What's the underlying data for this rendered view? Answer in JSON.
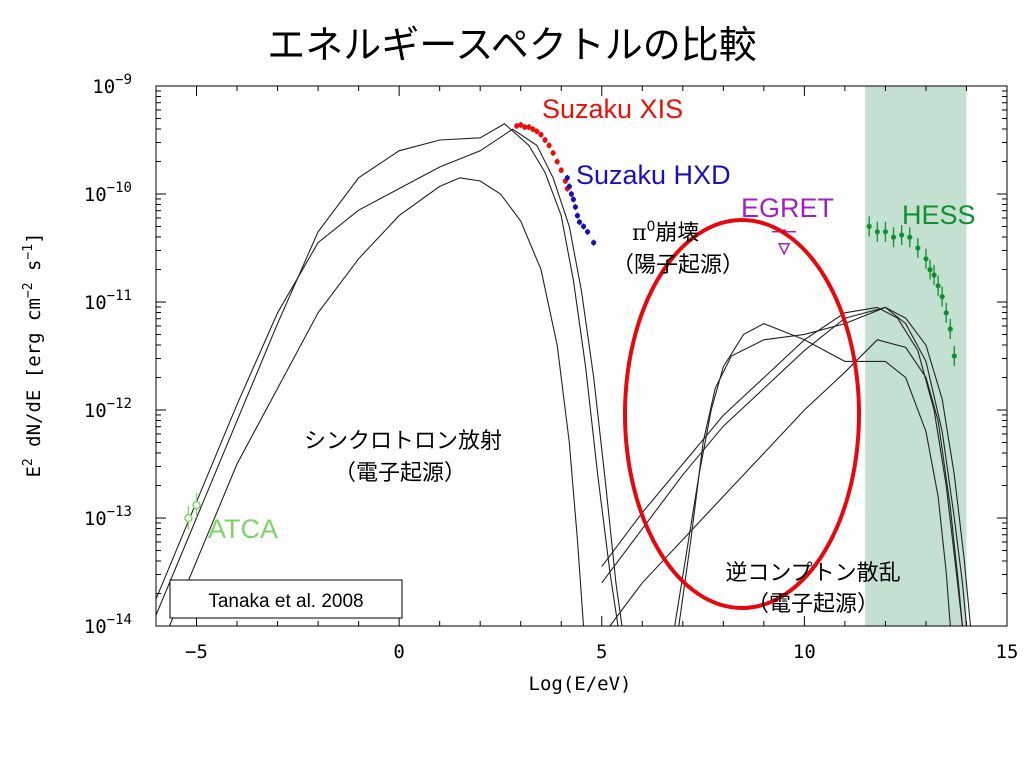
{
  "chart_data": {
    "type": "line",
    "title": "エネルギースペクトルの比較",
    "xlabel": "Log(E/eV)",
    "ylabel_parts": {
      "pre": "E",
      "sup1": "2",
      "mid": " dN/dE [erg cm",
      "sup2": "−2",
      "mid2": " s",
      "sup3": "−1",
      "post": "]"
    },
    "xlim": [
      -6,
      15
    ],
    "ylim_exp": [
      -14,
      -9
    ],
    "y_scale": "log",
    "x_ticks": [
      {
        "v": -5,
        "label": "−5"
      },
      {
        "v": 0,
        "label": "0"
      },
      {
        "v": 5,
        "label": "5"
      },
      {
        "v": 10,
        "label": "10"
      },
      {
        "v": 15,
        "label": "15"
      }
    ],
    "y_ticks": [
      {
        "exp": -9,
        "base": "10",
        "sup": "−9"
      },
      {
        "exp": -10,
        "base": "10",
        "sup": "−10"
      },
      {
        "exp": -11,
        "base": "10",
        "sup": "−11"
      },
      {
        "exp": -12,
        "base": "10",
        "sup": "−12"
      },
      {
        "exp": -13,
        "base": "10",
        "sup": "−13"
      },
      {
        "exp": -14,
        "base": "10",
        "sup": "−14"
      }
    ],
    "shaded_band": {
      "x_from": 11.5,
      "x_to": 14.0,
      "color": "#c3e0d1"
    },
    "curves": [
      [
        [
          -6.0,
          -13.9
        ],
        [
          -5,
          -13.0
        ],
        [
          -4,
          -12.1
        ],
        [
          -3,
          -11.2
        ],
        [
          -2,
          -10.35
        ],
        [
          -1,
          -9.85
        ],
        [
          0,
          -9.6
        ],
        [
          1,
          -9.5
        ],
        [
          2,
          -9.48
        ],
        [
          2.6,
          -9.35
        ],
        [
          3.2,
          -9.55
        ],
        [
          3.6,
          -9.8
        ],
        [
          4.0,
          -10.2
        ],
        [
          4.3,
          -10.8
        ],
        [
          4.6,
          -11.6
        ],
        [
          4.9,
          -12.6
        ],
        [
          5.2,
          -13.5
        ],
        [
          5.4,
          -14.0
        ]
      ],
      [
        [
          -6.0,
          -13.75
        ],
        [
          -5,
          -12.85
        ],
        [
          -4,
          -11.95
        ],
        [
          -3,
          -11.1
        ],
        [
          -2,
          -10.45
        ],
        [
          -1,
          -10.15
        ],
        [
          0,
          -9.95
        ],
        [
          1,
          -9.75
        ],
        [
          2,
          -9.6
        ],
        [
          2.8,
          -9.4
        ],
        [
          3.4,
          -9.55
        ],
        [
          3.8,
          -9.85
        ],
        [
          4.2,
          -10.3
        ],
        [
          4.5,
          -10.9
        ],
        [
          4.8,
          -11.7
        ],
        [
          5.1,
          -12.7
        ],
        [
          5.35,
          -13.6
        ],
        [
          5.5,
          -14.0
        ]
      ],
      [
        [
          -6.0,
          -14.3
        ],
        [
          -4,
          -12.5
        ],
        [
          -2,
          -11.1
        ],
        [
          -1,
          -10.6
        ],
        [
          0,
          -10.2
        ],
        [
          1,
          -9.93
        ],
        [
          1.5,
          -9.85
        ],
        [
          2,
          -9.88
        ],
        [
          2.5,
          -10.0
        ],
        [
          3,
          -10.25
        ],
        [
          3.5,
          -10.7
        ],
        [
          3.9,
          -11.4
        ],
        [
          4.2,
          -12.3
        ],
        [
          4.4,
          -13.2
        ],
        [
          4.55,
          -14.0
        ]
      ],
      [
        [
          6.9,
          -14.0
        ],
        [
          7.2,
          -13.2
        ],
        [
          7.5,
          -12.3
        ],
        [
          7.8,
          -11.8
        ],
        [
          8.2,
          -11.5
        ],
        [
          9,
          -11.35
        ],
        [
          10,
          -11.3
        ],
        [
          11,
          -11.2
        ],
        [
          12,
          -11.05
        ],
        [
          12.5,
          -11.15
        ],
        [
          13,
          -11.4
        ],
        [
          13.4,
          -11.9
        ],
        [
          13.7,
          -12.6
        ],
        [
          13.95,
          -13.4
        ],
        [
          14.1,
          -14.0
        ]
      ],
      [
        [
          5.0,
          -13.6
        ],
        [
          6,
          -13.1
        ],
        [
          7,
          -12.6
        ],
        [
          8,
          -12.15
        ],
        [
          9,
          -11.8
        ],
        [
          10,
          -11.45
        ],
        [
          11,
          -11.15
        ],
        [
          12,
          -11.05
        ],
        [
          12.5,
          -11.2
        ],
        [
          13,
          -11.55
        ],
        [
          13.4,
          -12.2
        ],
        [
          13.7,
          -13.0
        ],
        [
          13.9,
          -13.6
        ],
        [
          14.0,
          -14.0
        ]
      ],
      [
        [
          5.0,
          -13.45
        ],
        [
          6,
          -12.95
        ],
        [
          7,
          -12.5
        ],
        [
          8,
          -12.05
        ],
        [
          9,
          -11.7
        ],
        [
          10,
          -11.35
        ],
        [
          11,
          -11.1
        ],
        [
          11.8,
          -11.05
        ],
        [
          12.3,
          -11.15
        ],
        [
          12.8,
          -11.45
        ],
        [
          13.2,
          -12.0
        ],
        [
          13.5,
          -12.7
        ],
        [
          13.75,
          -13.5
        ],
        [
          13.9,
          -14.0
        ]
      ],
      [
        [
          5.2,
          -14.0
        ],
        [
          6,
          -13.6
        ],
        [
          7,
          -13.2
        ],
        [
          8,
          -12.8
        ],
        [
          9,
          -12.4
        ],
        [
          10,
          -12.0
        ],
        [
          11,
          -11.65
        ],
        [
          11.8,
          -11.35
        ],
        [
          12.5,
          -11.42
        ],
        [
          13,
          -11.7
        ],
        [
          13.3,
          -12.1
        ],
        [
          13.6,
          -12.9
        ],
        [
          13.8,
          -13.6
        ],
        [
          13.9,
          -14.0
        ]
      ],
      [
        [
          6.8,
          -14.0
        ],
        [
          7.1,
          -13.3
        ],
        [
          7.4,
          -12.6
        ],
        [
          7.7,
          -12.0
        ],
        [
          8,
          -11.6
        ],
        [
          8.5,
          -11.3
        ],
        [
          9,
          -11.2
        ],
        [
          10,
          -11.35
        ],
        [
          11,
          -11.55
        ],
        [
          12,
          -11.55
        ],
        [
          12.5,
          -11.7
        ],
        [
          13,
          -12.2
        ],
        [
          13.3,
          -12.8
        ],
        [
          13.5,
          -13.5
        ],
        [
          13.6,
          -14.0
        ]
      ]
    ],
    "series": [
      {
        "name": "Suzaku XIS",
        "color": "#e8100a",
        "points": [
          [
            2.9,
            -9.37
          ],
          [
            3.0,
            -9.36
          ],
          [
            3.1,
            -9.38
          ],
          [
            3.2,
            -9.38
          ],
          [
            3.3,
            -9.4
          ],
          [
            3.4,
            -9.42
          ],
          [
            3.5,
            -9.45
          ],
          [
            3.6,
            -9.5
          ],
          [
            3.7,
            -9.55
          ],
          [
            3.8,
            -9.62
          ],
          [
            3.9,
            -9.7
          ],
          [
            4.0,
            -9.78
          ],
          [
            4.1,
            -9.88
          ],
          [
            4.15,
            -9.95
          ]
        ]
      },
      {
        "name": "Suzaku HXD",
        "color": "#1a10b8",
        "points": [
          [
            4.15,
            -9.85
          ],
          [
            4.2,
            -9.93
          ],
          [
            4.25,
            -10.0
          ],
          [
            4.3,
            -10.05
          ],
          [
            4.35,
            -10.12
          ],
          [
            4.4,
            -10.2
          ],
          [
            4.45,
            -10.26
          ],
          [
            4.55,
            -10.3
          ],
          [
            4.65,
            -10.35
          ],
          [
            4.8,
            -10.45
          ]
        ]
      },
      {
        "name": "EGRET",
        "color": "#a020c8",
        "points": [
          [
            9.5,
            -10.35
          ]
        ]
      },
      {
        "name": "HESS",
        "color": "#0f8f2f",
        "points": [
          [
            11.6,
            -10.3
          ],
          [
            11.8,
            -10.35
          ],
          [
            12.0,
            -10.35
          ],
          [
            12.2,
            -10.4
          ],
          [
            12.4,
            -10.38
          ],
          [
            12.6,
            -10.4
          ],
          [
            12.8,
            -10.5
          ],
          [
            13.0,
            -10.6
          ],
          [
            13.1,
            -10.7
          ],
          [
            13.2,
            -10.75
          ],
          [
            13.3,
            -10.85
          ],
          [
            13.4,
            -10.95
          ],
          [
            13.5,
            -11.1
          ],
          [
            13.6,
            -11.25
          ],
          [
            13.7,
            -11.5
          ]
        ]
      },
      {
        "name": "ATCA",
        "color": "#7cd36a",
        "points": [
          [
            -5.2,
            -13.0
          ],
          [
            -5.0,
            -12.88
          ]
        ]
      }
    ],
    "annotations": {
      "suzaku_xis": "Suzaku XIS",
      "suzaku_hxd": "Suzaku HXD",
      "egret": "EGRET",
      "hess": "HESS",
      "atca": "ATCA",
      "pi0_decay_l1_pi": "π",
      "pi0_decay_l1_sup": "0",
      "pi0_decay_l1_rest": "崩壊",
      "pi0_decay_l2": "（陽子起源）",
      "synchrotron_l1": "シンクロトロン放射",
      "synchrotron_l2": "（電子起源）",
      "inverse_compton_l1": "逆コンプトン散乱",
      "inverse_compton_l2": "（電子起源）",
      "reference": "Tanaka et al. 2008"
    },
    "highlight_ellipse_color": "#e5080e"
  }
}
